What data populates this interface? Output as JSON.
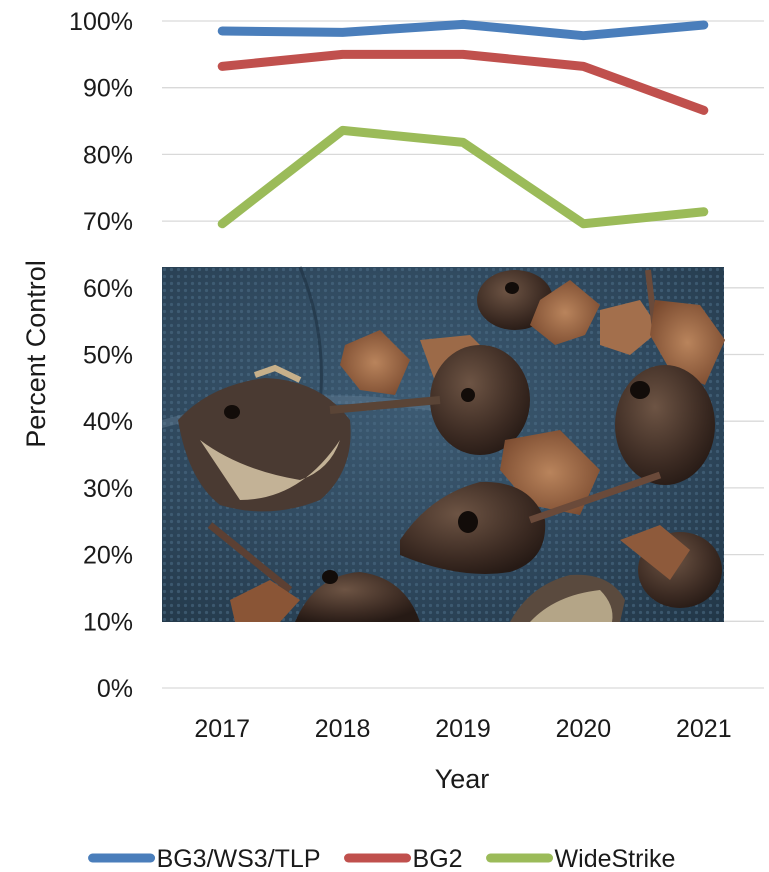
{
  "chart_data": {
    "type": "line",
    "title": "",
    "xlabel": "Year",
    "ylabel": "Percent Control",
    "categories": [
      "2017",
      "2018",
      "2019",
      "2020",
      "2021"
    ],
    "y_ticks": [
      "0%",
      "10%",
      "20%",
      "30%",
      "40%",
      "50%",
      "60%",
      "70%",
      "80%",
      "90%",
      "100%"
    ],
    "ylim": [
      0,
      100
    ],
    "grid": true,
    "legend_position": "bottom",
    "series": [
      {
        "name": "BG3/WS3/TLP",
        "color": "#4a7ebb",
        "values": [
          98.5,
          98.3,
          99.5,
          97.8,
          99.4
        ]
      },
      {
        "name": "BG2",
        "color": "#c0504d",
        "values": [
          93.2,
          95.0,
          95.0,
          93.2,
          86.6
        ]
      },
      {
        "name": "WideStrike",
        "color": "#9bbb59",
        "values": [
          69.6,
          83.6,
          81.8,
          69.6,
          71.4
        ]
      }
    ],
    "inset_photo": "cotton bolls with bollworm damage holes on a blue tarp"
  }
}
